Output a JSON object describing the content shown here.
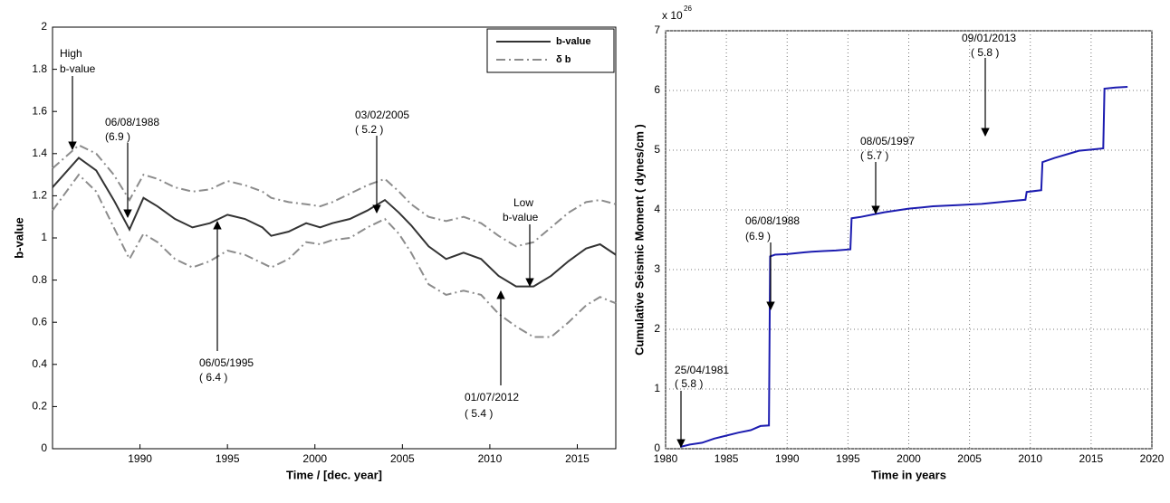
{
  "chart_data": [
    {
      "type": "line",
      "ylabel": "b-value",
      "xlabel": "Time / [dec. year]",
      "xlim": [
        1985,
        2017.2
      ],
      "xticks": [
        1990,
        1995,
        2000,
        2005,
        2010,
        2015
      ],
      "ylim": [
        0,
        2
      ],
      "yticks": [
        0,
        0.2,
        0.4,
        0.6,
        0.8,
        1,
        1.2,
        1.4,
        1.6,
        1.8,
        2
      ],
      "grid": false,
      "legend": "upper right",
      "x": [
        1985,
        1986.5,
        1987.5,
        1988.5,
        1989.4,
        1990.2,
        1991,
        1992,
        1993,
        1994,
        1995,
        1996,
        1997,
        1997.5,
        1998.5,
        1999.5,
        2000.3,
        2001,
        2002,
        2003,
        2004,
        2004.8,
        2005.5,
        2006.5,
        2007.5,
        2008.5,
        2009.5,
        2010.5,
        2011.5,
        2012.5,
        2013.5,
        2014.5,
        2015.5,
        2016.3,
        2017.2
      ],
      "series": [
        {
          "name": "b-value",
          "color": "#333333",
          "style": "solid",
          "values": [
            1.24,
            1.38,
            1.32,
            1.18,
            1.04,
            1.19,
            1.15,
            1.09,
            1.05,
            1.07,
            1.11,
            1.09,
            1.05,
            1.01,
            1.03,
            1.07,
            1.05,
            1.07,
            1.09,
            1.13,
            1.18,
            1.12,
            1.06,
            0.96,
            0.9,
            0.93,
            0.9,
            0.82,
            0.77,
            0.77,
            0.82,
            0.89,
            0.95,
            0.97,
            0.92
          ]
        },
        {
          "name": "δ b",
          "color": "#8c8c8c",
          "style": "dashdot",
          "upper": [
            1.33,
            1.44,
            1.4,
            1.3,
            1.18,
            1.3,
            1.28,
            1.24,
            1.22,
            1.23,
            1.27,
            1.25,
            1.22,
            1.19,
            1.17,
            1.16,
            1.15,
            1.17,
            1.21,
            1.25,
            1.28,
            1.22,
            1.16,
            1.1,
            1.08,
            1.1,
            1.07,
            1.01,
            0.96,
            0.98,
            1.05,
            1.12,
            1.17,
            1.18,
            1.16
          ],
          "lower": [
            1.13,
            1.3,
            1.22,
            1.05,
            0.9,
            1.02,
            0.98,
            0.9,
            0.86,
            0.89,
            0.94,
            0.92,
            0.88,
            0.86,
            0.9,
            0.98,
            0.97,
            0.99,
            1.0,
            1.05,
            1.09,
            1.02,
            0.93,
            0.78,
            0.73,
            0.75,
            0.73,
            0.64,
            0.58,
            0.53,
            0.53,
            0.6,
            0.68,
            0.72,
            0.69
          ]
        }
      ],
      "annotations": [
        [
          "High",
          "b-value"
        ],
        [
          "06/08/1988",
          "(6.9 )"
        ],
        [
          "06/05/1995",
          "( 6.4 )"
        ],
        [
          "03/02/2005",
          "( 5.2 )"
        ],
        [
          "Low",
          "b-value"
        ],
        [
          "01/07/2012",
          "( 5.4 )"
        ]
      ]
    },
    {
      "type": "line",
      "ylabel": "Cumulative Seismic  Moment ( dynes/cm )",
      "xlabel": "Time in years",
      "y_multiplier": {
        "base": "x 10",
        "exponent": "26"
      },
      "xlim": [
        1980,
        2020
      ],
      "xticks": [
        1980,
        1985,
        1990,
        1995,
        2000,
        2005,
        2010,
        2015,
        2020
      ],
      "ylim": [
        0,
        7
      ],
      "yticks": [
        0,
        1,
        2,
        3,
        4,
        5,
        6,
        7
      ],
      "grid": true,
      "x": [
        1981.2,
        1982,
        1983,
        1984,
        1985,
        1986,
        1987,
        1987.8,
        1988.5,
        1988.6,
        1989,
        1990,
        1991,
        1992,
        1993,
        1994,
        1995.2,
        1995.3,
        1996,
        1997,
        1998,
        1999,
        2000,
        2002,
        2004,
        2006,
        2008,
        2009.6,
        2009.7,
        2010.9,
        2011,
        2012,
        2013,
        2014,
        2015,
        2016,
        2016.1,
        2017,
        2018
      ],
      "series": [
        {
          "name": "Cumulative Seismic Moment",
          "color": "#1c1cb0",
          "style": "solid",
          "values": [
            0.03,
            0.07,
            0.1,
            0.17,
            0.22,
            0.27,
            0.31,
            0.38,
            0.39,
            3.22,
            3.25,
            3.26,
            3.28,
            3.3,
            3.31,
            3.32,
            3.34,
            3.86,
            3.88,
            3.92,
            3.96,
            3.99,
            4.02,
            4.06,
            4.08,
            4.1,
            4.14,
            4.17,
            4.3,
            4.33,
            4.8,
            4.87,
            4.93,
            4.99,
            5.01,
            5.03,
            6.03,
            6.05,
            6.06
          ]
        }
      ],
      "annotations": [
        [
          "25/04/1981",
          "( 5.8 )"
        ],
        [
          "06/08/1988",
          "(6.9 )"
        ],
        [
          "08/05/1997",
          "( 5.7 )"
        ],
        [
          "09/01/2013",
          "( 5.8 )"
        ]
      ]
    }
  ]
}
